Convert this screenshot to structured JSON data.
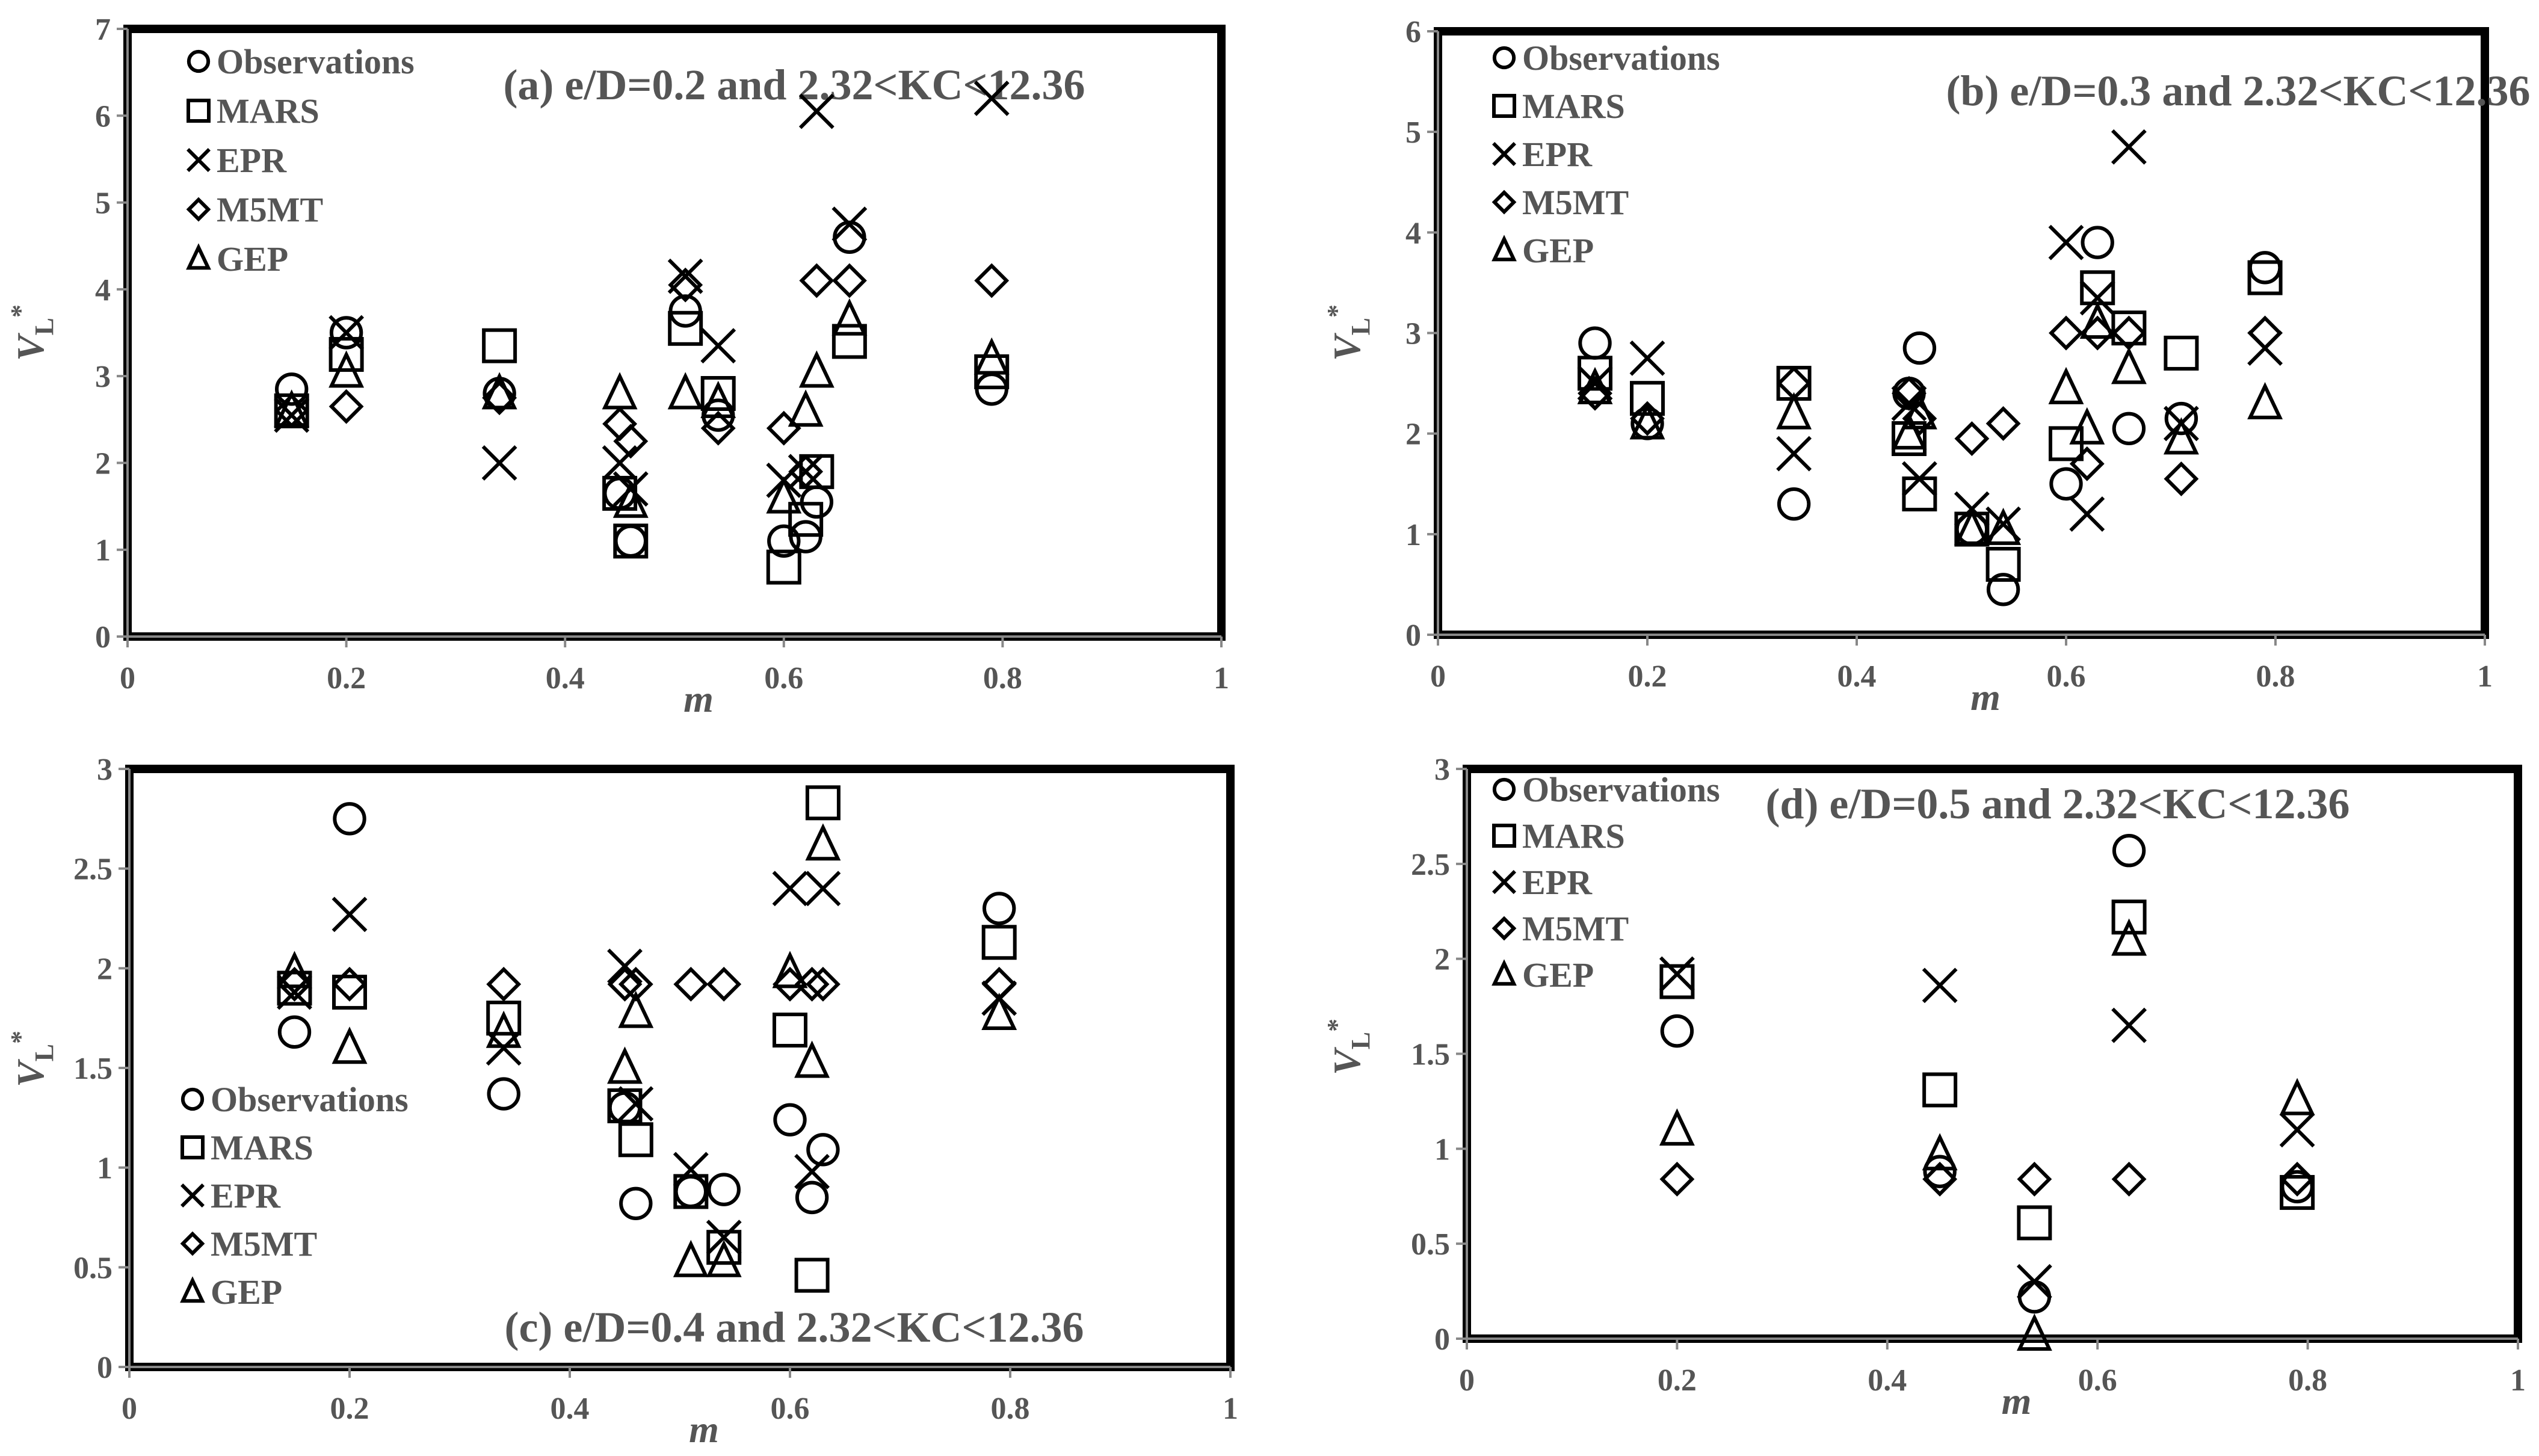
{
  "chart_data": [
    {
      "type": "scatter",
      "title": "(a) e/D=0.2 and 2.32<KC<12.36",
      "xlabel": "m",
      "ylabel": "V",
      "ylabel_sub": "L",
      "ylabel_sup": "*",
      "xlim": [
        0,
        1
      ],
      "ylim": [
        0,
        7
      ],
      "xticks": [
        "0",
        "0.2",
        "0.4",
        "0.6",
        "0.8",
        "1"
      ],
      "yticks": [
        "0",
        "1",
        "2",
        "3",
        "4",
        "5",
        "6",
        "7"
      ],
      "legend_position": "top-left",
      "series": [
        {
          "name": "Observations",
          "marker": "circle",
          "points": [
            [
              0.15,
              2.85
            ],
            [
              0.2,
              3.5
            ],
            [
              0.34,
              2.8
            ],
            [
              0.45,
              1.65
            ],
            [
              0.46,
              1.1
            ],
            [
              0.51,
              3.75
            ],
            [
              0.54,
              2.55
            ],
            [
              0.6,
              1.1
            ],
            [
              0.62,
              1.15
            ],
            [
              0.63,
              1.55
            ],
            [
              0.66,
              4.6
            ],
            [
              0.79,
              2.85
            ]
          ]
        },
        {
          "name": "MARS",
          "marker": "square",
          "points": [
            [
              0.15,
              2.6
            ],
            [
              0.2,
              3.25
            ],
            [
              0.34,
              3.35
            ],
            [
              0.45,
              1.65
            ],
            [
              0.46,
              1.1
            ],
            [
              0.51,
              3.55
            ],
            [
              0.54,
              2.8
            ],
            [
              0.6,
              0.8
            ],
            [
              0.62,
              1.35
            ],
            [
              0.63,
              1.9
            ],
            [
              0.66,
              3.4
            ],
            [
              0.79,
              3.05
            ]
          ]
        },
        {
          "name": "EPR",
          "marker": "cross",
          "points": [
            [
              0.15,
              2.55
            ],
            [
              0.2,
              3.5
            ],
            [
              0.34,
              2.0
            ],
            [
              0.45,
              2.0
            ],
            [
              0.46,
              1.7
            ],
            [
              0.51,
              4.15
            ],
            [
              0.54,
              3.35
            ],
            [
              0.6,
              1.8
            ],
            [
              0.62,
              1.9
            ],
            [
              0.63,
              6.05
            ],
            [
              0.66,
              4.75
            ],
            [
              0.79,
              6.2
            ]
          ]
        },
        {
          "name": "M5MT",
          "marker": "diamond",
          "points": [
            [
              0.15,
              2.6
            ],
            [
              0.2,
              2.65
            ],
            [
              0.34,
              2.75
            ],
            [
              0.45,
              2.45
            ],
            [
              0.46,
              2.25
            ],
            [
              0.51,
              4.05
            ],
            [
              0.54,
              2.4
            ],
            [
              0.6,
              2.4
            ],
            [
              0.62,
              1.9
            ],
            [
              0.63,
              4.1
            ],
            [
              0.66,
              4.1
            ],
            [
              0.79,
              4.1
            ]
          ]
        },
        {
          "name": "GEP",
          "marker": "triangle",
          "points": [
            [
              0.15,
              2.6
            ],
            [
              0.2,
              3.05
            ],
            [
              0.34,
              2.8
            ],
            [
              0.45,
              2.8
            ],
            [
              0.46,
              1.55
            ],
            [
              0.51,
              2.8
            ],
            [
              0.54,
              2.7
            ],
            [
              0.6,
              1.6
            ],
            [
              0.62,
              2.6
            ],
            [
              0.63,
              3.05
            ],
            [
              0.66,
              3.65
            ],
            [
              0.79,
              3.2
            ]
          ]
        }
      ]
    },
    {
      "type": "scatter",
      "title": "(b) e/D=0.3 and 2.32<KC<12.36",
      "xlabel": "m",
      "ylabel": "V",
      "ylabel_sub": "L",
      "ylabel_sup": "*",
      "xlim": [
        0,
        1
      ],
      "ylim": [
        0,
        6
      ],
      "xticks": [
        "0",
        "0.2",
        "0.4",
        "0.6",
        "0.8",
        "1"
      ],
      "yticks": [
        "0",
        "1",
        "2",
        "3",
        "4",
        "5",
        "6"
      ],
      "legend_position": "top-left",
      "series": [
        {
          "name": "Observations",
          "marker": "circle",
          "points": [
            [
              0.15,
              2.9
            ],
            [
              0.2,
              2.1
            ],
            [
              0.34,
              1.3
            ],
            [
              0.45,
              2.4
            ],
            [
              0.46,
              2.85
            ],
            [
              0.51,
              1.05
            ],
            [
              0.54,
              0.45
            ],
            [
              0.6,
              1.5
            ],
            [
              0.63,
              3.9
            ],
            [
              0.66,
              2.05
            ],
            [
              0.71,
              2.15
            ],
            [
              0.79,
              3.65
            ]
          ]
        },
        {
          "name": "MARS",
          "marker": "square",
          "points": [
            [
              0.15,
              2.6
            ],
            [
              0.2,
              2.35
            ],
            [
              0.34,
              2.5
            ],
            [
              0.45,
              1.95
            ],
            [
              0.46,
              1.4
            ],
            [
              0.51,
              1.05
            ],
            [
              0.54,
              0.7
            ],
            [
              0.6,
              1.9
            ],
            [
              0.63,
              3.45
            ],
            [
              0.66,
              3.05
            ],
            [
              0.71,
              2.8
            ],
            [
              0.79,
              3.55
            ]
          ]
        },
        {
          "name": "EPR",
          "marker": "cross",
          "points": [
            [
              0.15,
              2.5
            ],
            [
              0.2,
              2.75
            ],
            [
              0.34,
              1.8
            ],
            [
              0.45,
              2.3
            ],
            [
              0.46,
              1.55
            ],
            [
              0.51,
              1.25
            ],
            [
              0.54,
              1.1
            ],
            [
              0.6,
              3.9
            ],
            [
              0.62,
              1.2
            ],
            [
              0.63,
              3.35
            ],
            [
              0.66,
              4.85
            ],
            [
              0.71,
              2.1
            ],
            [
              0.79,
              2.85
            ]
          ]
        },
        {
          "name": "M5MT",
          "marker": "diamond",
          "points": [
            [
              0.15,
              2.4
            ],
            [
              0.2,
              2.15
            ],
            [
              0.34,
              2.5
            ],
            [
              0.45,
              2.4
            ],
            [
              0.46,
              2.15
            ],
            [
              0.51,
              1.95
            ],
            [
              0.54,
              2.1
            ],
            [
              0.6,
              3.0
            ],
            [
              0.62,
              1.7
            ],
            [
              0.63,
              3.0
            ],
            [
              0.66,
              3.0
            ],
            [
              0.71,
              1.55
            ],
            [
              0.79,
              3.0
            ]
          ]
        },
        {
          "name": "GEP",
          "marker": "triangle",
          "points": [
            [
              0.15,
              2.45
            ],
            [
              0.2,
              2.1
            ],
            [
              0.34,
              2.2
            ],
            [
              0.45,
              2.0
            ],
            [
              0.46,
              2.2
            ],
            [
              0.51,
              1.05
            ],
            [
              0.54,
              1.05
            ],
            [
              0.6,
              2.45
            ],
            [
              0.62,
              2.05
            ],
            [
              0.63,
              3.1
            ],
            [
              0.66,
              2.65
            ],
            [
              0.71,
              1.95
            ],
            [
              0.79,
              2.3
            ]
          ]
        }
      ]
    },
    {
      "type": "scatter",
      "title": "(c) e/D=0.4 and 2.32<KC<12.36",
      "xlabel": "m",
      "ylabel": "V",
      "ylabel_sub": "L",
      "ylabel_sup": "*",
      "xlim": [
        0,
        1
      ],
      "ylim": [
        0,
        3
      ],
      "xticks": [
        "0",
        "0.2",
        "0.4",
        "0.6",
        "0.8",
        "1"
      ],
      "yticks": [
        "0",
        "0.5",
        "1",
        "1.5",
        "2",
        "2.5",
        "3"
      ],
      "legend_position": "bottom-left",
      "series": [
        {
          "name": "Observations",
          "marker": "circle",
          "points": [
            [
              0.15,
              1.68
            ],
            [
              0.2,
              2.75
            ],
            [
              0.34,
              1.37
            ],
            [
              0.45,
              1.3
            ],
            [
              0.46,
              0.82
            ],
            [
              0.51,
              0.88
            ],
            [
              0.54,
              0.89
            ],
            [
              0.6,
              1.24
            ],
            [
              0.62,
              0.85
            ],
            [
              0.63,
              1.09
            ],
            [
              0.79,
              2.3
            ]
          ]
        },
        {
          "name": "MARS",
          "marker": "square",
          "points": [
            [
              0.15,
              1.9
            ],
            [
              0.2,
              1.88
            ],
            [
              0.34,
              1.75
            ],
            [
              0.45,
              1.31
            ],
            [
              0.46,
              1.14
            ],
            [
              0.51,
              0.88
            ],
            [
              0.54,
              0.6
            ],
            [
              0.6,
              1.69
            ],
            [
              0.62,
              0.46
            ],
            [
              0.63,
              2.83
            ],
            [
              0.79,
              2.13
            ]
          ]
        },
        {
          "name": "EPR",
          "marker": "cross",
          "points": [
            [
              0.15,
              1.88
            ],
            [
              0.2,
              2.27
            ],
            [
              0.34,
              1.6
            ],
            [
              0.45,
              2.01
            ],
            [
              0.46,
              1.32
            ],
            [
              0.51,
              0.99
            ],
            [
              0.54,
              0.65
            ],
            [
              0.6,
              2.4
            ],
            [
              0.62,
              0.98
            ],
            [
              0.63,
              2.4
            ],
            [
              0.79,
              1.85
            ]
          ]
        },
        {
          "name": "M5MT",
          "marker": "diamond",
          "points": [
            [
              0.15,
              1.92
            ],
            [
              0.2,
              1.92
            ],
            [
              0.34,
              1.92
            ],
            [
              0.45,
              1.92
            ],
            [
              0.46,
              1.92
            ],
            [
              0.51,
              1.92
            ],
            [
              0.54,
              1.92
            ],
            [
              0.6,
              1.92
            ],
            [
              0.62,
              1.92
            ],
            [
              0.63,
              1.92
            ],
            [
              0.79,
              1.92
            ]
          ]
        },
        {
          "name": "GEP",
          "marker": "triangle",
          "points": [
            [
              0.15,
              1.98
            ],
            [
              0.2,
              1.6
            ],
            [
              0.34,
              1.68
            ],
            [
              0.45,
              1.5
            ],
            [
              0.46,
              1.78
            ],
            [
              0.51,
              0.53
            ],
            [
              0.54,
              0.53
            ],
            [
              0.6,
              1.98
            ],
            [
              0.62,
              1.53
            ],
            [
              0.63,
              2.62
            ],
            [
              0.79,
              1.77
            ]
          ]
        }
      ]
    },
    {
      "type": "scatter",
      "title": "(d) e/D=0.5 and 2.32<KC<12.36",
      "xlabel": "m",
      "ylabel": "V",
      "ylabel_sub": "L",
      "ylabel_sup": "*",
      "xlim": [
        0,
        1
      ],
      "ylim": [
        0,
        3
      ],
      "xticks": [
        "0",
        "0.2",
        "0.4",
        "0.6",
        "0.8",
        "1"
      ],
      "yticks": [
        "0",
        "0.5",
        "1",
        "1.5",
        "2",
        "2.5",
        "3"
      ],
      "legend_position": "top-left",
      "series": [
        {
          "name": "Observations",
          "marker": "circle",
          "points": [
            [
              0.2,
              1.62
            ],
            [
              0.45,
              0.88
            ],
            [
              0.54,
              0.22
            ],
            [
              0.63,
              2.57
            ],
            [
              0.79,
              0.8
            ]
          ]
        },
        {
          "name": "MARS",
          "marker": "square",
          "points": [
            [
              0.2,
              1.88
            ],
            [
              0.45,
              1.31
            ],
            [
              0.54,
              0.61
            ],
            [
              0.63,
              2.22
            ],
            [
              0.79,
              0.77
            ]
          ]
        },
        {
          "name": "EPR",
          "marker": "cross",
          "points": [
            [
              0.2,
              1.92
            ],
            [
              0.45,
              1.86
            ],
            [
              0.54,
              0.3
            ],
            [
              0.63,
              1.65
            ],
            [
              0.79,
              1.1
            ]
          ]
        },
        {
          "name": "M5MT",
          "marker": "diamond",
          "points": [
            [
              0.2,
              0.84
            ],
            [
              0.45,
              0.84
            ],
            [
              0.54,
              0.84
            ],
            [
              0.63,
              0.84
            ],
            [
              0.79,
              0.84
            ]
          ]
        },
        {
          "name": "GEP",
          "marker": "triangle",
          "points": [
            [
              0.2,
              1.1
            ],
            [
              0.45,
              0.97
            ],
            [
              0.54,
              0.02
            ],
            [
              0.63,
              2.1
            ],
            [
              0.79,
              1.26
            ]
          ]
        }
      ]
    }
  ]
}
